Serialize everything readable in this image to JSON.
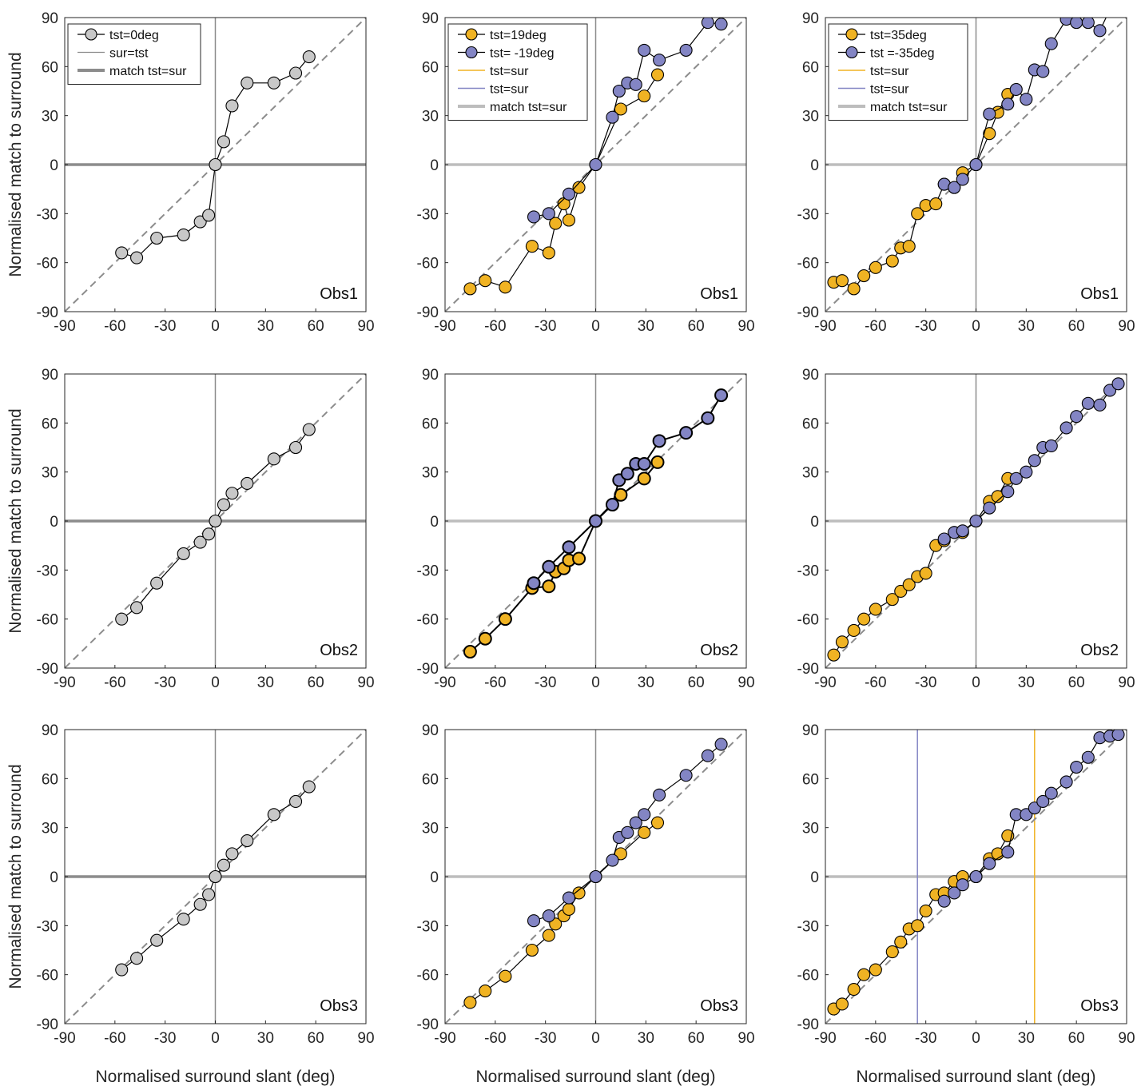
{
  "figure": {
    "ylabel": "Normalised match to surround",
    "xlabel": "Normalised surround slant (deg)"
  },
  "colors": {
    "gray_marker": "#c8c8c8",
    "orange": "#f0b323",
    "blue": "#8385c4",
    "dashed": "#8c8c8c",
    "axis_line": "#8c8c8c",
    "match_line_dark": "#8c8c8c",
    "match_line_light": "#bdbdbd"
  },
  "legend_a": [
    "tst=0deg",
    "sur=tst",
    "match tst=sur"
  ],
  "legend_b": [
    "tst=19deg",
    "tst= -19deg",
    "tst=sur",
    "tst=sur",
    "match tst=sur"
  ],
  "legend_c": [
    "tst=35deg",
    "tst =-35deg",
    "tst=sur",
    "tst=sur",
    "match tst=sur"
  ],
  "chart_data": [
    {
      "type": "line",
      "panel": "row1-col1",
      "observer": "Obs1",
      "xlim": [
        -90,
        90
      ],
      "ylim": [
        -90,
        90
      ],
      "xticks": [
        -90,
        -60,
        -30,
        0,
        30,
        60,
        90
      ],
      "yticks": [
        -90,
        -60,
        -30,
        0,
        30,
        60,
        90
      ],
      "xlabel": "",
      "ylabel": "Normalised match to surround",
      "series": [
        {
          "name": "tst=0deg",
          "x": [
            -56,
            -47,
            -35,
            -19,
            -9,
            -4,
            0,
            5,
            10,
            19,
            35,
            48,
            56
          ],
          "y": [
            -54,
            -57,
            -45,
            -43,
            -35,
            -31,
            0,
            14,
            36,
            50,
            50,
            56,
            66
          ]
        }
      ]
    },
    {
      "type": "line",
      "panel": "row1-col2",
      "observer": "Obs1",
      "xlim": [
        -90,
        90
      ],
      "ylim": [
        -90,
        90
      ],
      "xticks": [
        -90,
        -60,
        -30,
        0,
        30,
        60,
        90
      ],
      "yticks": [
        -90,
        -60,
        -30,
        0,
        30,
        60,
        90
      ],
      "xlabel": "",
      "ylabel": "",
      "series": [
        {
          "name": "tst=19deg",
          "x": [
            -75,
            -66,
            -54,
            -38,
            -28,
            -24,
            -19,
            -16,
            -10,
            0,
            15,
            29,
            37
          ],
          "y": [
            -76,
            -71,
            -75,
            -50,
            -54,
            -36,
            -24,
            -34,
            -14,
            0,
            34,
            42,
            55
          ]
        },
        {
          "name": "tst= -19deg",
          "x": [
            -37,
            -28,
            -16,
            0,
            10,
            14,
            19,
            24,
            29,
            38,
            54,
            67,
            75
          ],
          "y": [
            -32,
            -30,
            -18,
            0,
            29,
            45,
            50,
            49,
            70,
            64,
            70,
            87,
            86
          ]
        }
      ]
    },
    {
      "type": "line",
      "panel": "row1-col3",
      "observer": "Obs1",
      "xlim": [
        -90,
        90
      ],
      "ylim": [
        -90,
        90
      ],
      "xticks": [
        -90,
        -60,
        -30,
        0,
        30,
        60,
        90
      ],
      "yticks": [
        -90,
        -60,
        -30,
        0,
        30,
        60,
        90
      ],
      "xlabel": "",
      "ylabel": "",
      "series": [
        {
          "name": "tst=35deg",
          "x": [
            -85,
            -80,
            -73,
            -67,
            -60,
            -50,
            -45,
            -40,
            -35,
            -30,
            -24,
            -19,
            -13,
            -8,
            0,
            8,
            13,
            19
          ],
          "y": [
            -72,
            -71,
            -76,
            -68,
            -63,
            -59,
            -51,
            -50,
            -30,
            -25,
            -24,
            -12,
            -14,
            -5,
            0,
            19,
            32,
            43
          ]
        },
        {
          "name": "tst =-35deg",
          "x": [
            -19,
            -13,
            -8,
            0,
            8,
            19,
            24,
            30,
            35,
            40,
            45,
            54,
            60,
            67,
            74,
            80,
            85
          ],
          "y": [
            -12,
            -14,
            -9,
            0,
            31,
            37,
            46,
            40,
            58,
            57,
            74,
            89,
            87,
            87,
            82,
            95,
            96
          ]
        }
      ]
    },
    {
      "type": "line",
      "panel": "row2-col1",
      "observer": "Obs2",
      "xlim": [
        -90,
        90
      ],
      "ylim": [
        -90,
        90
      ],
      "xticks": [
        -90,
        -60,
        -30,
        0,
        30,
        60,
        90
      ],
      "yticks": [
        -90,
        -60,
        -30,
        0,
        30,
        60,
        90
      ],
      "xlabel": "",
      "ylabel": "Normalised match to surround",
      "series": [
        {
          "name": "tst=0deg",
          "x": [
            -56,
            -47,
            -35,
            -19,
            -9,
            -4,
            0,
            5,
            10,
            19,
            35,
            48,
            56
          ],
          "y": [
            -60,
            -53,
            -38,
            -20,
            -13,
            -8,
            0,
            10,
            17,
            23,
            38,
            45,
            56
          ]
        }
      ]
    },
    {
      "type": "line",
      "panel": "row2-col2",
      "observer": "Obs2",
      "xlim": [
        -90,
        90
      ],
      "ylim": [
        -90,
        90
      ],
      "xticks": [
        -90,
        -60,
        -30,
        0,
        30,
        60,
        90
      ],
      "yticks": [
        -90,
        -60,
        -30,
        0,
        30,
        60,
        90
      ],
      "xlabel": "",
      "ylabel": "",
      "series": [
        {
          "name": "tst=19deg",
          "x": [
            -75,
            -66,
            -54,
            -38,
            -28,
            -24,
            -19,
            -16,
            -10,
            0,
            15,
            29,
            37
          ],
          "y": [
            -80,
            -72,
            -60,
            -41,
            -40,
            -31,
            -29,
            -24,
            -23,
            0,
            16,
            26,
            36
          ]
        },
        {
          "name": "tst= -19deg",
          "x": [
            -37,
            -28,
            -16,
            0,
            10,
            14,
            19,
            24,
            29,
            38,
            54,
            67,
            75
          ],
          "y": [
            -38,
            -28,
            -16,
            0,
            10,
            25,
            29,
            35,
            35,
            49,
            54,
            63,
            77
          ]
        }
      ]
    },
    {
      "type": "line",
      "panel": "row2-col3",
      "observer": "Obs2",
      "xlim": [
        -90,
        90
      ],
      "ylim": [
        -90,
        90
      ],
      "xticks": [
        -90,
        -60,
        -30,
        0,
        30,
        60,
        90
      ],
      "yticks": [
        -90,
        -60,
        -30,
        0,
        30,
        60,
        90
      ],
      "xlabel": "",
      "ylabel": "",
      "series": [
        {
          "name": "tst=35deg",
          "x": [
            -85,
            -80,
            -73,
            -67,
            -60,
            -50,
            -45,
            -40,
            -35,
            -30,
            -24,
            -19,
            -13,
            -8,
            0,
            8,
            13,
            19
          ],
          "y": [
            -82,
            -74,
            -67,
            -60,
            -54,
            -48,
            -43,
            -39,
            -34,
            -32,
            -15,
            -12,
            -7,
            -7,
            0,
            12,
            15,
            26
          ]
        },
        {
          "name": "tst =-35deg",
          "x": [
            -19,
            -13,
            -8,
            0,
            8,
            19,
            24,
            30,
            35,
            40,
            45,
            54,
            60,
            67,
            74,
            80,
            85
          ],
          "y": [
            -11,
            -7,
            -6,
            0,
            8,
            18,
            26,
            30,
            37,
            45,
            46,
            57,
            64,
            72,
            71,
            80,
            84
          ]
        }
      ]
    },
    {
      "type": "line",
      "panel": "row3-col1",
      "observer": "Obs3",
      "xlim": [
        -90,
        90
      ],
      "ylim": [
        -90,
        90
      ],
      "xticks": [
        -90,
        -60,
        -30,
        0,
        30,
        60,
        90
      ],
      "yticks": [
        -90,
        -60,
        -30,
        0,
        30,
        60,
        90
      ],
      "xlabel": "Normalised surround slant (deg)",
      "ylabel": "Normalised match to surround",
      "series": [
        {
          "name": "tst=0deg",
          "x": [
            -56,
            -47,
            -35,
            -19,
            -9,
            -4,
            0,
            5,
            10,
            19,
            35,
            48,
            56
          ],
          "y": [
            -57,
            -50,
            -39,
            -26,
            -17,
            -11,
            0,
            7,
            14,
            22,
            38,
            46,
            55
          ]
        }
      ]
    },
    {
      "type": "line",
      "panel": "row3-col2",
      "observer": "Obs3",
      "xlim": [
        -90,
        90
      ],
      "ylim": [
        -90,
        90
      ],
      "xticks": [
        -90,
        -60,
        -30,
        0,
        30,
        60,
        90
      ],
      "yticks": [
        -90,
        -60,
        -30,
        0,
        30,
        60,
        90
      ],
      "xlabel": "Normalised surround slant (deg)",
      "ylabel": "",
      "series": [
        {
          "name": "tst=19deg",
          "x": [
            -75,
            -66,
            -54,
            -38,
            -28,
            -24,
            -19,
            -16,
            -10,
            0,
            15,
            29,
            37
          ],
          "y": [
            -77,
            -70,
            -61,
            -45,
            -36,
            -29,
            -24,
            -20,
            -10,
            0,
            14,
            27,
            33
          ]
        },
        {
          "name": "tst= -19deg",
          "x": [
            -37,
            -28,
            -16,
            0,
            10,
            14,
            19,
            24,
            29,
            38,
            54,
            67,
            75
          ],
          "y": [
            -27,
            -24,
            -13,
            0,
            10,
            24,
            27,
            33,
            38,
            50,
            62,
            74,
            81
          ]
        }
      ]
    },
    {
      "type": "line",
      "panel": "row3-col3",
      "observer": "Obs3",
      "xlim": [
        -90,
        90
      ],
      "ylim": [
        -90,
        90
      ],
      "xticks": [
        -90,
        -60,
        -30,
        0,
        30,
        60,
        90
      ],
      "yticks": [
        -90,
        -60,
        -30,
        0,
        30,
        60,
        90
      ],
      "xlabel": "Normalised surround slant (deg)",
      "ylabel": "",
      "series": [
        {
          "name": "tst=35deg",
          "x": [
            -85,
            -80,
            -73,
            -67,
            -60,
            -50,
            -45,
            -40,
            -35,
            -30,
            -24,
            -19,
            -13,
            -8,
            0,
            8,
            13,
            19
          ],
          "y": [
            -81,
            -78,
            -69,
            -60,
            -57,
            -46,
            -40,
            -32,
            -30,
            -21,
            -11,
            -10,
            -3,
            0,
            0,
            11,
            14,
            25
          ]
        },
        {
          "name": "tst =-35deg",
          "x": [
            -19,
            -13,
            -8,
            0,
            8,
            19,
            24,
            30,
            35,
            40,
            45,
            54,
            60,
            67,
            74,
            80,
            85
          ],
          "y": [
            -15,
            -10,
            -5,
            0,
            8,
            15,
            38,
            38,
            42,
            46,
            51,
            58,
            67,
            73,
            85,
            86,
            87
          ]
        }
      ]
    }
  ]
}
